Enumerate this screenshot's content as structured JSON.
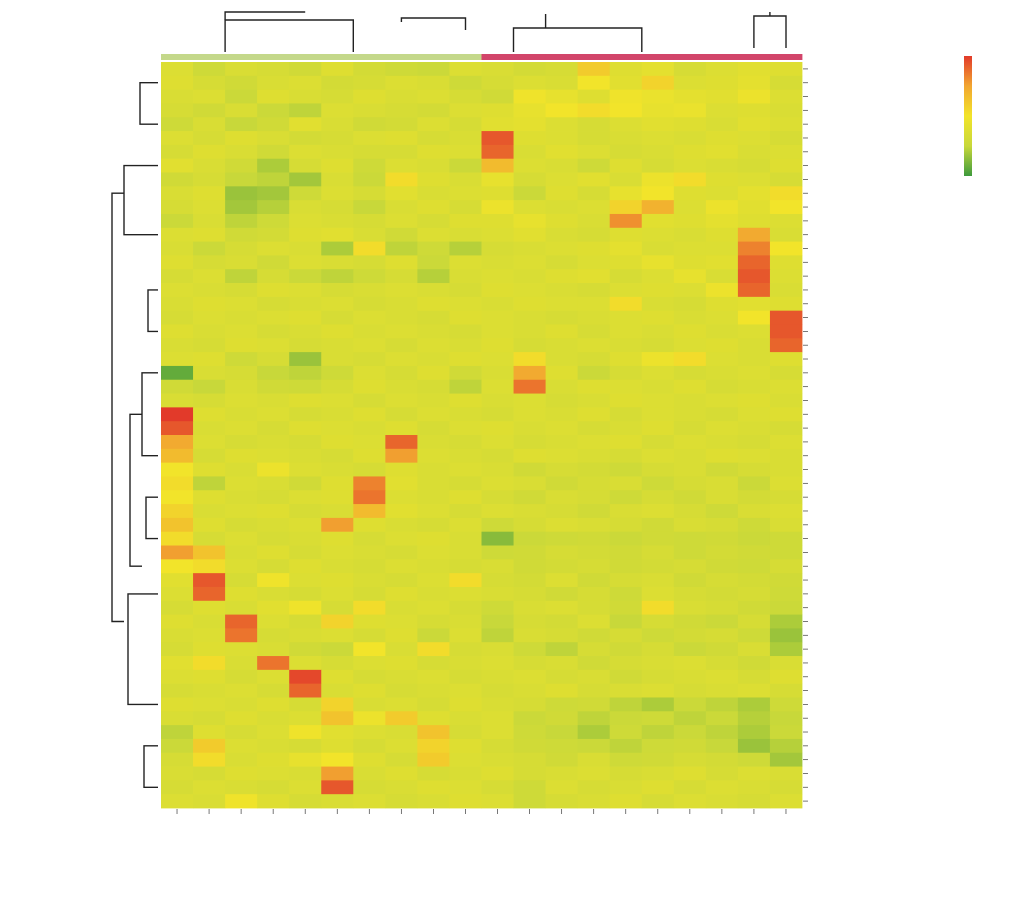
{
  "chart_data": {
    "type": "heatmap",
    "title": "",
    "xlabel": "",
    "ylabel": "",
    "x_categories": [
      "",
      "",
      "",
      "",
      "",
      "",
      "",
      "",
      "",
      "",
      "",
      "",
      "",
      "",
      "",
      "",
      "",
      "",
      "",
      ""
    ],
    "y_categories": [],
    "column_group_colors": {
      "group_a": "#c4d88a",
      "group_b": "#d2456a"
    },
    "column_groups": [
      "group_a",
      "group_a",
      "group_a",
      "group_a",
      "group_a",
      "group_a",
      "group_a",
      "group_a",
      "group_a",
      "group_a",
      "group_b",
      "group_b",
      "group_b",
      "group_b",
      "group_b",
      "group_b",
      "group_b",
      "group_b",
      "group_b",
      "group_b"
    ],
    "color_scale": {
      "min": -2,
      "max": 4,
      "stops": [
        "#3e9a3c",
        "#c8d83a",
        "#f2e42a",
        "#f2a630",
        "#e23a2a"
      ],
      "legend_ticks": [
        "",
        "",
        "",
        "",
        ""
      ]
    },
    "values": [
      [
        0.2,
        -0.3,
        0.1,
        0.0,
        -0.2,
        0.3,
        -0.1,
        -0.3,
        -0.4,
        0.2,
        0.1,
        -0.1,
        0.0,
        1.6,
        0.3,
        0.5,
        0.0,
        0.2,
        0.4,
        0.3
      ],
      [
        0.3,
        0.0,
        -0.2,
        0.1,
        0.2,
        -0.1,
        0.0,
        0.2,
        0.1,
        -0.3,
        0.0,
        0.2,
        0.1,
        1.0,
        0.4,
        1.4,
        0.2,
        0.3,
        0.5,
        0.0
      ],
      [
        0.1,
        0.2,
        -0.4,
        0.3,
        0.1,
        0.0,
        0.3,
        0.1,
        0.2,
        0.0,
        -0.2,
        0.9,
        0.6,
        0.3,
        0.9,
        0.7,
        0.5,
        0.4,
        0.8,
        0.2
      ],
      [
        0.0,
        -0.2,
        0.1,
        -0.4,
        -0.6,
        0.2,
        0.1,
        0.0,
        -0.1,
        0.2,
        0.3,
        0.6,
        1.0,
        1.2,
        1.0,
        0.6,
        0.7,
        0.2,
        0.3,
        0.1
      ],
      [
        -0.3,
        0.1,
        -0.5,
        -0.2,
        0.4,
        0.1,
        -0.2,
        -0.1,
        0.2,
        0.0,
        0.4,
        0.5,
        0.2,
        0.0,
        0.2,
        0.4,
        0.3,
        0.1,
        0.4,
        0.2
      ],
      [
        0.2,
        0.0,
        0.3,
        0.1,
        -0.1,
        0.0,
        0.2,
        0.3,
        0.0,
        0.1,
        3.6,
        0.3,
        0.2,
        0.0,
        0.1,
        0.2,
        0.1,
        0.3,
        0.2,
        0.0
      ],
      [
        0.0,
        0.3,
        0.1,
        -0.2,
        0.2,
        0.1,
        0.0,
        0.0,
        0.3,
        0.2,
        3.4,
        0.1,
        0.4,
        0.2,
        0.0,
        0.1,
        0.3,
        0.4,
        0.1,
        0.2
      ],
      [
        0.4,
        0.1,
        -0.2,
        -0.8,
        0.0,
        0.3,
        -0.3,
        0.2,
        0.1,
        -0.4,
        2.0,
        0.2,
        0.1,
        -0.3,
        0.3,
        0.0,
        0.2,
        0.1,
        0.0,
        0.3
      ],
      [
        -0.2,
        0.0,
        -0.5,
        -0.6,
        -0.9,
        0.1,
        -0.4,
        1.2,
        0.3,
        0.1,
        0.6,
        0.0,
        0.2,
        0.4,
        0.1,
        0.8,
        1.2,
        0.3,
        0.2,
        0.0
      ],
      [
        0.1,
        0.3,
        -1.0,
        -0.9,
        -0.3,
        0.2,
        0.0,
        0.4,
        0.1,
        0.2,
        0.3,
        -0.4,
        0.3,
        0.0,
        0.6,
        1.0,
        0.3,
        0.2,
        0.5,
        1.2
      ],
      [
        0.0,
        0.2,
        -0.9,
        -0.7,
        0.1,
        0.0,
        -0.5,
        0.1,
        0.3,
        0.0,
        0.8,
        0.2,
        0.1,
        0.2,
        1.4,
        2.2,
        0.2,
        0.8,
        0.4,
        1.0
      ],
      [
        -0.4,
        0.1,
        -0.6,
        -0.3,
        0.2,
        0.1,
        0.0,
        0.2,
        0.0,
        0.3,
        0.3,
        0.6,
        0.3,
        0.1,
        2.8,
        0.4,
        0.3,
        0.5,
        0.3,
        0.2
      ],
      [
        0.2,
        0.3,
        -0.2,
        -0.1,
        0.3,
        0.4,
        0.1,
        -0.2,
        0.2,
        0.1,
        0.2,
        0.4,
        0.1,
        0.0,
        0.3,
        0.2,
        0.1,
        0.3,
        2.4,
        0.1
      ],
      [
        0.1,
        -0.4,
        0.0,
        0.2,
        0.1,
        -0.8,
        1.2,
        -0.6,
        -0.3,
        -0.7,
        0.0,
        0.1,
        0.2,
        0.3,
        0.5,
        0.1,
        0.2,
        0.2,
        3.0,
        1.0
      ],
      [
        0.3,
        0.0,
        0.1,
        -0.2,
        0.2,
        0.1,
        0.0,
        0.3,
        -0.4,
        0.2,
        0.1,
        0.2,
        0.0,
        0.2,
        0.3,
        0.6,
        0.3,
        0.4,
        3.4,
        0.3
      ],
      [
        0.0,
        0.2,
        -0.6,
        0.0,
        -0.4,
        -0.6,
        -0.3,
        0.0,
        -0.7,
        0.1,
        0.2,
        0.1,
        0.3,
        0.4,
        0.0,
        0.2,
        0.6,
        0.1,
        3.6,
        0.2
      ],
      [
        0.2,
        0.1,
        0.0,
        0.3,
        0.2,
        0.0,
        0.1,
        0.2,
        0.1,
        0.0,
        0.3,
        0.2,
        0.1,
        0.0,
        0.2,
        0.3,
        0.2,
        0.8,
        3.4,
        0.1
      ],
      [
        0.1,
        0.3,
        0.2,
        0.0,
        0.1,
        0.2,
        0.0,
        0.1,
        0.3,
        0.2,
        0.1,
        0.3,
        0.2,
        0.2,
        1.2,
        0.1,
        0.0,
        0.3,
        0.4,
        0.3
      ],
      [
        0.0,
        0.2,
        0.1,
        0.2,
        0.3,
        0.0,
        0.2,
        0.1,
        0.0,
        0.3,
        0.2,
        0.1,
        0.0,
        0.1,
        0.2,
        0.3,
        0.1,
        0.2,
        1.0,
        3.6
      ],
      [
        0.3,
        0.1,
        0.2,
        0.0,
        0.1,
        0.3,
        0.1,
        0.2,
        0.1,
        0.0,
        0.2,
        0.1,
        0.3,
        0.0,
        0.2,
        0.1,
        0.3,
        0.1,
        0.2,
        3.6
      ],
      [
        0.1,
        0.0,
        0.3,
        0.2,
        0.0,
        0.1,
        0.2,
        0.0,
        0.2,
        0.1,
        0.3,
        0.0,
        0.1,
        0.2,
        0.1,
        0.0,
        0.2,
        0.3,
        0.1,
        3.4
      ],
      [
        0.2,
        0.3,
        -0.3,
        0.0,
        -1.0,
        0.1,
        0.0,
        0.2,
        0.1,
        0.3,
        0.2,
        1.2,
        0.1,
        0.0,
        0.3,
        0.8,
        1.2,
        0.2,
        0.1,
        0.3
      ],
      [
        -1.6,
        0.1,
        0.0,
        -0.5,
        -0.6,
        -0.3,
        0.2,
        0.0,
        0.3,
        -0.2,
        0.1,
        2.4,
        0.3,
        -0.4,
        0.0,
        0.2,
        0.0,
        0.1,
        0.2,
        0.0
      ],
      [
        -0.2,
        -0.5,
        0.1,
        -0.2,
        -0.3,
        0.0,
        0.3,
        0.1,
        0.0,
        -0.6,
        0.2,
        3.2,
        0.1,
        0.3,
        0.2,
        0.1,
        0.3,
        0.0,
        0.1,
        0.2
      ],
      [
        0.1,
        0.0,
        0.2,
        0.1,
        0.3,
        0.2,
        0.0,
        0.2,
        0.1,
        0.3,
        0.1,
        0.2,
        0.0,
        0.1,
        0.3,
        0.2,
        0.1,
        0.2,
        0.3,
        0.1
      ],
      [
        4.0,
        0.3,
        0.1,
        0.2,
        0.0,
        0.1,
        0.3,
        0.0,
        0.2,
        0.1,
        0.0,
        0.2,
        0.1,
        0.3,
        0.0,
        0.2,
        0.1,
        0.0,
        0.2,
        0.3
      ],
      [
        3.6,
        0.1,
        0.2,
        0.0,
        0.3,
        0.2,
        0.1,
        0.3,
        0.0,
        0.2,
        0.3,
        0.1,
        0.2,
        0.0,
        0.1,
        0.3,
        0.0,
        0.2,
        0.1,
        0.0
      ],
      [
        2.4,
        0.2,
        0.0,
        0.1,
        0.0,
        0.3,
        0.2,
        3.4,
        0.1,
        0.0,
        0.2,
        0.0,
        0.1,
        0.2,
        0.3,
        0.0,
        0.2,
        0.1,
        0.0,
        0.2
      ],
      [
        2.0,
        0.0,
        0.3,
        0.2,
        0.1,
        0.0,
        0.3,
        2.6,
        0.2,
        0.1,
        0.0,
        0.3,
        0.2,
        0.1,
        0.0,
        0.2,
        0.1,
        0.3,
        0.2,
        0.1
      ],
      [
        1.0,
        0.3,
        0.1,
        0.8,
        0.2,
        0.1,
        0.0,
        0.3,
        0.1,
        0.2,
        0.1,
        -0.2,
        0.0,
        -0.1,
        -0.3,
        0.0,
        0.1,
        -0.2,
        0.0,
        0.1
      ],
      [
        1.2,
        -0.6,
        0.2,
        0.1,
        -0.2,
        0.3,
        3.0,
        0.4,
        0.1,
        0.0,
        0.2,
        0.1,
        -0.2,
        0.0,
        0.1,
        -0.3,
        0.0,
        0.1,
        -0.4,
        0.2
      ],
      [
        1.0,
        0.3,
        0.1,
        0.0,
        0.2,
        0.3,
        3.2,
        0.2,
        0.1,
        0.3,
        0.0,
        -0.2,
        0.1,
        0.0,
        -0.3,
        0.0,
        -0.2,
        0.1,
        -0.1,
        0.0
      ],
      [
        1.4,
        0.1,
        0.2,
        0.3,
        0.0,
        0.1,
        2.0,
        0.4,
        0.2,
        0.0,
        0.2,
        0.1,
        0.0,
        -0.2,
        0.1,
        0.2,
        0.0,
        -0.3,
        0.1,
        0.2
      ],
      [
        1.8,
        0.3,
        0.0,
        0.1,
        0.2,
        2.6,
        0.3,
        0.1,
        0.0,
        0.2,
        -0.3,
        0.0,
        0.2,
        0.1,
        0.0,
        -0.2,
        0.1,
        0.0,
        -0.3,
        0.1
      ],
      [
        1.2,
        0.0,
        0.2,
        0.0,
        0.1,
        0.3,
        0.0,
        0.2,
        0.3,
        0.1,
        -1.2,
        -0.4,
        -0.3,
        -0.2,
        -0.4,
        -0.2,
        -0.3,
        -0.2,
        -0.4,
        -0.3
      ],
      [
        2.6,
        1.8,
        0.1,
        0.3,
        0.0,
        0.2,
        0.1,
        0.0,
        0.2,
        0.1,
        -0.3,
        -0.2,
        0.0,
        -0.1,
        -0.2,
        0.0,
        -0.3,
        -0.1,
        -0.2,
        -0.3
      ],
      [
        1.0,
        1.2,
        0.2,
        0.0,
        0.3,
        0.1,
        0.0,
        0.2,
        0.1,
        0.0,
        0.1,
        -0.2,
        -0.1,
        0.0,
        -0.2,
        -0.1,
        0.0,
        -0.2,
        -0.3,
        0.0
      ],
      [
        0.4,
        3.6,
        0.0,
        0.9,
        0.2,
        0.3,
        0.1,
        0.0,
        0.2,
        1.2,
        0.0,
        -0.1,
        0.2,
        -0.2,
        0.0,
        0.1,
        -0.2,
        0.0,
        -0.1,
        -0.2
      ],
      [
        0.2,
        3.4,
        0.3,
        0.1,
        0.0,
        0.2,
        0.0,
        0.3,
        0.1,
        0.2,
        0.1,
        0.0,
        -0.2,
        0.0,
        -0.3,
        0.2,
        0.0,
        -0.1,
        0.0,
        -0.3
      ],
      [
        0.0,
        0.3,
        0.1,
        0.4,
        0.9,
        0.0,
        1.2,
        0.1,
        0.2,
        0.0,
        -0.3,
        0.1,
        0.2,
        0.0,
        -0.2,
        1.2,
        0.1,
        0.0,
        -0.2,
        -0.4
      ],
      [
        0.3,
        0.1,
        3.4,
        0.2,
        0.0,
        1.4,
        0.3,
        0.2,
        0.0,
        0.1,
        -0.5,
        0.0,
        -0.1,
        0.2,
        -0.5,
        0.0,
        -0.2,
        -0.4,
        0.0,
        -0.8
      ],
      [
        0.1,
        0.2,
        3.2,
        0.0,
        0.1,
        0.2,
        0.0,
        0.3,
        -0.4,
        0.2,
        -0.6,
        0.1,
        0.0,
        -0.2,
        0.0,
        -0.3,
        -0.1,
        0.0,
        -0.3,
        -1.0
      ],
      [
        0.0,
        0.3,
        0.2,
        0.1,
        -0.2,
        -0.4,
        1.0,
        0.1,
        1.2,
        0.0,
        0.1,
        -0.3,
        -0.6,
        0.0,
        -0.2,
        0.0,
        -0.4,
        -0.2,
        0.1,
        -0.8
      ],
      [
        0.4,
        1.2,
        0.1,
        3.2,
        0.2,
        0.0,
        0.2,
        0.3,
        0.0,
        0.1,
        0.2,
        0.0,
        0.1,
        -0.2,
        0.0,
        0.1,
        0.2,
        0.0,
        -0.2,
        0.1
      ],
      [
        0.2,
        0.3,
        0.0,
        0.2,
        3.8,
        0.3,
        0.0,
        0.1,
        0.2,
        0.0,
        0.1,
        0.2,
        0.0,
        0.1,
        -0.2,
        0.0,
        0.1,
        0.2,
        0.0,
        0.3
      ],
      [
        0.0,
        0.1,
        0.2,
        0.0,
        3.4,
        0.1,
        0.3,
        0.0,
        0.1,
        0.2,
        0.0,
        0.1,
        0.3,
        0.0,
        0.1,
        0.2,
        0.0,
        0.1,
        0.2,
        0.0
      ],
      [
        0.3,
        0.2,
        0.1,
        0.3,
        0.0,
        1.4,
        0.1,
        0.2,
        0.0,
        0.3,
        0.1,
        0.0,
        -0.3,
        -0.2,
        -0.6,
        -0.8,
        -0.4,
        -0.6,
        -0.8,
        -0.3
      ],
      [
        0.1,
        0.0,
        0.3,
        0.1,
        0.2,
        1.8,
        0.8,
        1.6,
        0.3,
        0.1,
        0.2,
        -0.4,
        -0.2,
        -0.6,
        -0.4,
        -0.3,
        -0.6,
        -0.4,
        -0.7,
        -0.5
      ],
      [
        -0.6,
        0.3,
        0.0,
        0.2,
        0.9,
        0.4,
        0.2,
        0.1,
        1.8,
        0.0,
        0.2,
        -0.3,
        -0.5,
        -0.8,
        -0.3,
        -0.6,
        -0.4,
        -0.6,
        -0.8,
        -0.4
      ],
      [
        -0.4,
        1.6,
        0.2,
        0.1,
        0.0,
        0.3,
        0.0,
        0.2,
        1.4,
        0.3,
        0.0,
        -0.2,
        -0.3,
        -0.4,
        -0.6,
        -0.3,
        -0.2,
        -0.5,
        -1.0,
        -0.7
      ],
      [
        0.0,
        1.2,
        0.1,
        0.3,
        0.6,
        1.0,
        0.3,
        0.0,
        1.6,
        0.2,
        0.1,
        0.0,
        -0.2,
        0.1,
        -0.3,
        -0.2,
        0.0,
        -0.1,
        -0.3,
        -0.9
      ],
      [
        0.1,
        0.0,
        0.3,
        0.2,
        0.1,
        2.6,
        0.1,
        0.3,
        0.0,
        0.1,
        0.3,
        0.0,
        0.1,
        0.2,
        0.0,
        0.1,
        0.3,
        0.0,
        0.2,
        0.1
      ],
      [
        0.0,
        0.2,
        0.1,
        0.0,
        0.2,
        3.6,
        0.0,
        0.1,
        0.3,
        0.2,
        0.0,
        -0.3,
        0.2,
        0.0,
        0.1,
        0.3,
        0.0,
        0.2,
        0.1,
        0.0
      ],
      [
        0.2,
        0.1,
        0.9,
        0.3,
        0.0,
        0.1,
        0.2,
        0.0,
        0.1,
        0.3,
        0.2,
        -0.3,
        0.0,
        0.1,
        0.3,
        0.0,
        0.2,
        0.1,
        0.0,
        0.2
      ]
    ]
  }
}
